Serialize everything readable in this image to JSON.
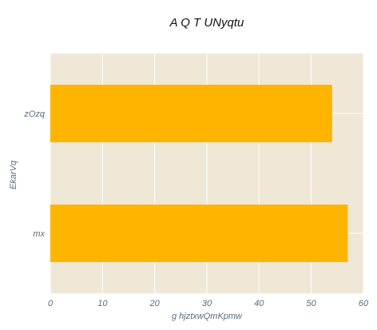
{
  "chart_data": {
    "type": "bar",
    "orientation": "horizontal",
    "title": "A Q T  UNyqtu",
    "xlabel": "g hjztxwQmKpmw",
    "ylabel": "EkarVq",
    "categories": [
      "zOzq",
      "mx"
    ],
    "values": [
      54,
      57
    ],
    "xlim": [
      0,
      60
    ],
    "xticks": [
      0,
      10,
      20,
      30,
      40,
      50,
      60
    ],
    "grid": true,
    "colors": {
      "bar": "#ffb400",
      "plot_background": "#efe8d6",
      "grid": "#ffffff"
    }
  }
}
